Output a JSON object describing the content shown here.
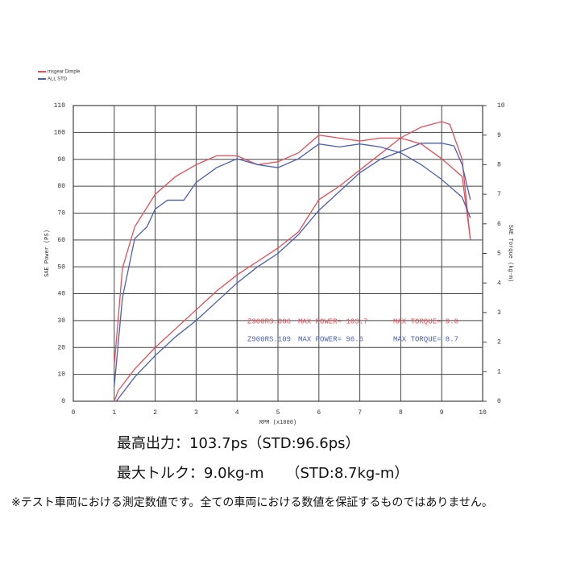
{
  "chart_data": {
    "type": "line",
    "x_label": "RPM (x1000)",
    "y_label": "SAE Power (PS)",
    "y2_label": "SAE Torque (kg-m)",
    "xlim": [
      0,
      10
    ],
    "xticks": [
      0,
      1,
      2,
      3,
      4,
      5,
      6,
      7,
      8,
      9,
      10
    ],
    "ylim": [
      0,
      110
    ],
    "yticks": [
      0,
      10,
      20,
      30,
      40,
      50,
      60,
      70,
      80,
      90,
      100,
      110
    ],
    "y2lim": [
      0,
      10
    ],
    "y2ticks": [
      0,
      1,
      2,
      3,
      4,
      5,
      6,
      7,
      8,
      9,
      10
    ],
    "grid": true,
    "series": [
      {
        "name": "msgear Dimple",
        "color": "#e0505a",
        "x": [
          1.0,
          1.1,
          1.5,
          2,
          2.5,
          3,
          3.5,
          4,
          4.5,
          5,
          5.5,
          6,
          6.5,
          7,
          7.5,
          8,
          8.5,
          9,
          9.2,
          9.5,
          9.7
        ],
        "values": [
          0,
          4,
          12,
          20,
          27,
          34,
          41,
          47,
          52,
          57,
          63,
          75,
          80,
          86,
          92,
          98,
          102,
          104,
          103,
          90,
          60
        ]
      },
      {
        "name": "ALL STD",
        "color": "#4a5fb0",
        "x": [
          1.05,
          1.5,
          2,
          2.5,
          3,
          3.5,
          4,
          4.5,
          5,
          5.5,
          6,
          6.5,
          7,
          7.5,
          8,
          8.5,
          9,
          9.3,
          9.5,
          9.7
        ],
        "values": [
          0,
          9,
          17,
          24,
          30,
          37,
          44,
          50,
          55,
          62,
          71,
          78,
          85,
          90,
          93,
          96,
          96,
          95,
          88,
          75
        ]
      },
      {
        "name": "msgear Dimple",
        "color": "#e0505a",
        "axis": "y2",
        "x": [
          1.0,
          1.2,
          1.5,
          2,
          2.5,
          3,
          3.5,
          4,
          4.5,
          5,
          5.5,
          6,
          6.5,
          7,
          7.5,
          8,
          8.5,
          9,
          9.5,
          9.7
        ],
        "values": [
          1.2,
          4.5,
          5.9,
          7.0,
          7.6,
          8.0,
          8.3,
          8.3,
          8.0,
          8.1,
          8.4,
          9.0,
          8.9,
          8.8,
          8.9,
          8.9,
          8.7,
          8.2,
          7.6,
          5.5
        ]
      },
      {
        "name": "ALL STD",
        "color": "#4a5fb0",
        "axis": "y2",
        "x": [
          1.0,
          1.2,
          1.5,
          1.8,
          2,
          2.3,
          2.7,
          3,
          3.5,
          4,
          4.5,
          5,
          5.5,
          6,
          6.5,
          7,
          7.5,
          8,
          8.5,
          9,
          9.5,
          9.7
        ],
        "values": [
          0.5,
          3.5,
          5.5,
          5.9,
          6.5,
          6.8,
          6.8,
          7.4,
          7.9,
          8.2,
          8.0,
          7.9,
          8.2,
          8.7,
          8.6,
          8.7,
          8.6,
          8.4,
          8.0,
          7.5,
          6.9,
          6.2
        ]
      }
    ],
    "annotations": [
      {
        "model": "Z900RS.086",
        "power": "MAX POWER= 103.7",
        "torque": "MAX TORQUE= 9.0",
        "color": "#e0505a"
      },
      {
        "model": "Z900RS.109",
        "power": "MAX POWER= 96.6",
        "torque": "MAX TORQUE= 8.7",
        "color": "#4a5fb0"
      }
    ]
  },
  "captions": [
    "最高出力：103.7ps（STD:96.6ps）",
    "最大トルク：9.0kg-m　　（STD:8.7kg-m）",
    "※テスト車両における測定数値です。全ての車両における数値を保証するものではありません。"
  ]
}
